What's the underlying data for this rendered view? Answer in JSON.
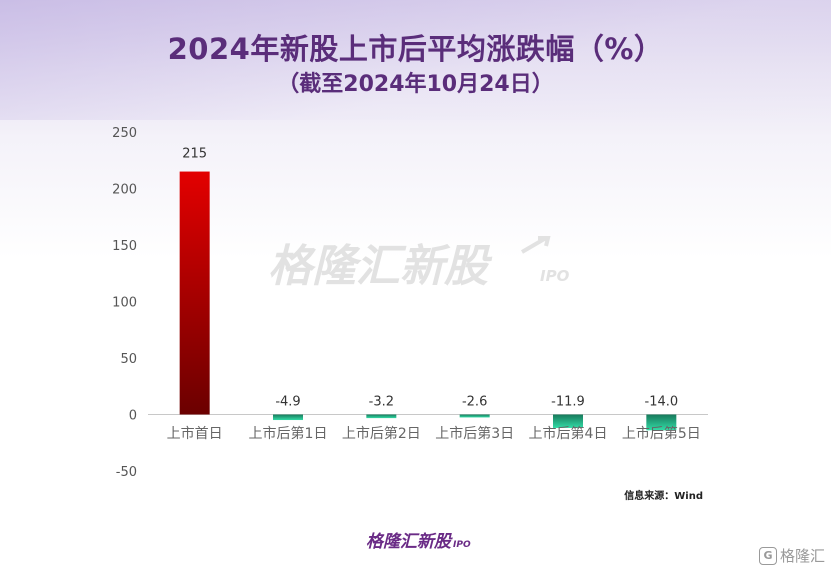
{
  "title": "2024年新股上市后平均涨跌幅（%）",
  "subtitle": "（截至2024年10月24日）",
  "source": "信息来源：Wind",
  "brand": "格隆汇新股",
  "brand_suffix": "IPO",
  "corner_mark": "格隆汇",
  "colors": {
    "positive_top": "#e30000",
    "positive_bottom": "#6b0000",
    "negative_top": "#1a8a66",
    "negative_bottom": "#2fd4a0",
    "title": "#5a2d7a"
  },
  "chart_data": {
    "type": "bar",
    "categories": [
      "上市首日",
      "上市后第1日",
      "上市后第2日",
      "上市后第3日",
      "上市后第4日",
      "上市后第5日"
    ],
    "values": [
      215,
      -4.9,
      -3.2,
      -2.6,
      -11.9,
      -14.0
    ],
    "value_labels": [
      "215",
      "-4.9",
      "-3.2",
      "-2.6",
      "-11.9",
      "-14.0"
    ],
    "ylim": [
      -50,
      250
    ],
    "yticks": [
      -50,
      0,
      50,
      100,
      150,
      200,
      250
    ],
    "grid": false,
    "legend": "none"
  }
}
